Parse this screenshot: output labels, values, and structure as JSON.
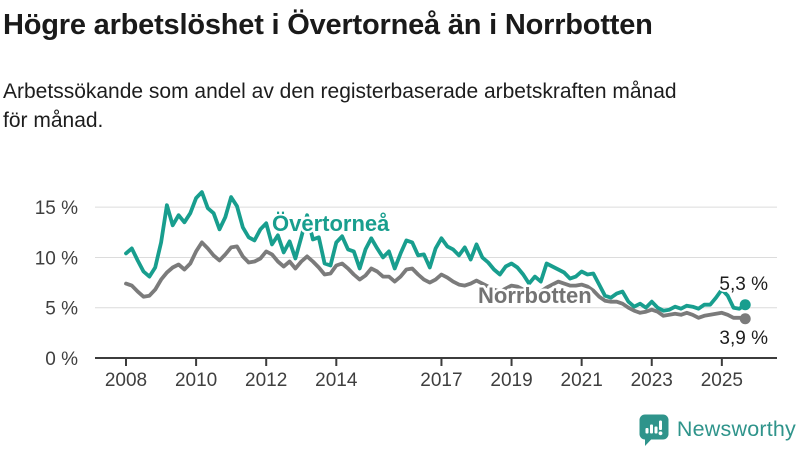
{
  "header": {
    "title": "Högre arbetslöshet i Övertorneå än i Norrbotten",
    "subtitle": "Arbetssökande som andel av den registerbaserade arbetskraften månad för månad."
  },
  "footer": {
    "brand": "Newsworthy",
    "brand_color": "#2f948b",
    "logo_icon": "bar-chart-speech-bubble-icon"
  },
  "chart_data": {
    "type": "line",
    "unit": "%",
    "grid": true,
    "legend": "inline-labels",
    "ylim": [
      0,
      17.5
    ],
    "x_range_years": [
      2007.1,
      2026.6
    ],
    "start_year": 2008,
    "points_per_year": 6,
    "end_period": "2025-09",
    "y_axis": {
      "ticks": [
        {
          "label": "0 %",
          "value": 0
        },
        {
          "label": "5 %",
          "value": 5
        },
        {
          "label": "10 %",
          "value": 10
        },
        {
          "label": "15 %",
          "value": 15
        }
      ]
    },
    "x_axis": {
      "ticks": [
        {
          "label": "2008",
          "year": 2008
        },
        {
          "label": "2010",
          "year": 2010
        },
        {
          "label": "2012",
          "year": 2012
        },
        {
          "label": "2014",
          "year": 2014
        },
        {
          "label": "2017",
          "year": 2017
        },
        {
          "label": "2019",
          "year": 2019
        },
        {
          "label": "2021",
          "year": 2021
        },
        {
          "label": "2023",
          "year": 2023
        },
        {
          "label": "2025",
          "year": 2025
        }
      ]
    },
    "series": [
      {
        "id": "overtornea",
        "name": "Övertorneå",
        "color": "#189e8e",
        "end_label": "5,3 %",
        "end_value": 5.3,
        "values": [
          10.4,
          10.9,
          9.7,
          8.6,
          8.1,
          9.0,
          11.5,
          15.2,
          13.2,
          14.2,
          13.5,
          14.4,
          15.9,
          16.5,
          14.9,
          14.4,
          12.8,
          14.0,
          16.0,
          15.1,
          13.0,
          12.0,
          11.7,
          12.8,
          13.4,
          11.3,
          12.2,
          10.5,
          11.6,
          9.9,
          12.0,
          14.2,
          11.8,
          12.0,
          9.4,
          9.2,
          11.5,
          12.1,
          10.8,
          10.6,
          8.9,
          10.8,
          11.9,
          10.9,
          10.0,
          10.6,
          8.9,
          10.4,
          11.7,
          11.5,
          10.2,
          10.3,
          9.0,
          10.9,
          11.9,
          11.1,
          10.8,
          10.2,
          11.0,
          9.8,
          11.3,
          10.0,
          9.5,
          8.8,
          8.3,
          9.1,
          9.4,
          9.0,
          8.3,
          7.4,
          8.1,
          7.6,
          9.4,
          9.1,
          8.8,
          8.5,
          7.9,
          8.1,
          8.6,
          8.3,
          8.4,
          7.3,
          6.2,
          6.0,
          6.4,
          6.6,
          5.6,
          5.1,
          5.4,
          5.0,
          5.6,
          5.0,
          4.7,
          4.8,
          5.1,
          4.9,
          5.2,
          5.1,
          4.9,
          5.3,
          5.3,
          6.0,
          6.8,
          6.2,
          5.0,
          4.9,
          5.3
        ]
      },
      {
        "id": "norrbotten",
        "name": "Norrbotten",
        "color": "#7b7b7b",
        "end_label": "3,9 %",
        "end_value": 3.9,
        "values": [
          7.4,
          7.2,
          6.6,
          6.1,
          6.2,
          6.8,
          7.8,
          8.5,
          9.0,
          9.3,
          8.8,
          9.4,
          10.6,
          11.5,
          10.9,
          10.2,
          9.7,
          10.3,
          11.0,
          11.1,
          10.1,
          9.5,
          9.6,
          9.9,
          10.6,
          10.3,
          9.6,
          9.1,
          9.6,
          8.9,
          9.6,
          10.1,
          9.6,
          9.0,
          8.3,
          8.4,
          9.2,
          9.4,
          8.9,
          8.3,
          7.8,
          8.2,
          8.9,
          8.6,
          8.1,
          8.1,
          7.6,
          8.1,
          8.8,
          8.9,
          8.3,
          7.8,
          7.5,
          7.8,
          8.3,
          8.0,
          7.6,
          7.3,
          7.2,
          7.4,
          7.7,
          7.4,
          7.1,
          6.8,
          6.6,
          6.9,
          7.2,
          7.1,
          6.8,
          6.4,
          6.3,
          6.6,
          7.0,
          7.3,
          7.6,
          7.4,
          7.2,
          7.2,
          7.3,
          7.1,
          6.7,
          6.1,
          5.7,
          5.6,
          5.6,
          5.4,
          5.0,
          4.7,
          4.5,
          4.6,
          4.8,
          4.6,
          4.2,
          4.3,
          4.4,
          4.3,
          4.5,
          4.3,
          4.0,
          4.2,
          4.3,
          4.4,
          4.5,
          4.3,
          4.0,
          4.0,
          3.9
        ]
      }
    ]
  }
}
